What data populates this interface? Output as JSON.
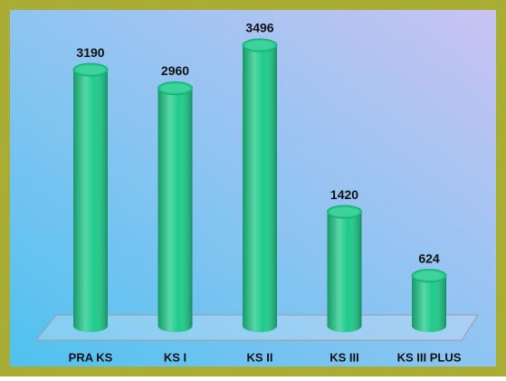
{
  "chart_data": {
    "type": "bar3d",
    "categories": [
      "PRA KS",
      "KS I",
      "KS II",
      "KS III",
      "KS III PLUS"
    ],
    "values": [
      3190,
      2960,
      3496,
      1420,
      624
    ],
    "color": "#1ecb8a"
  }
}
